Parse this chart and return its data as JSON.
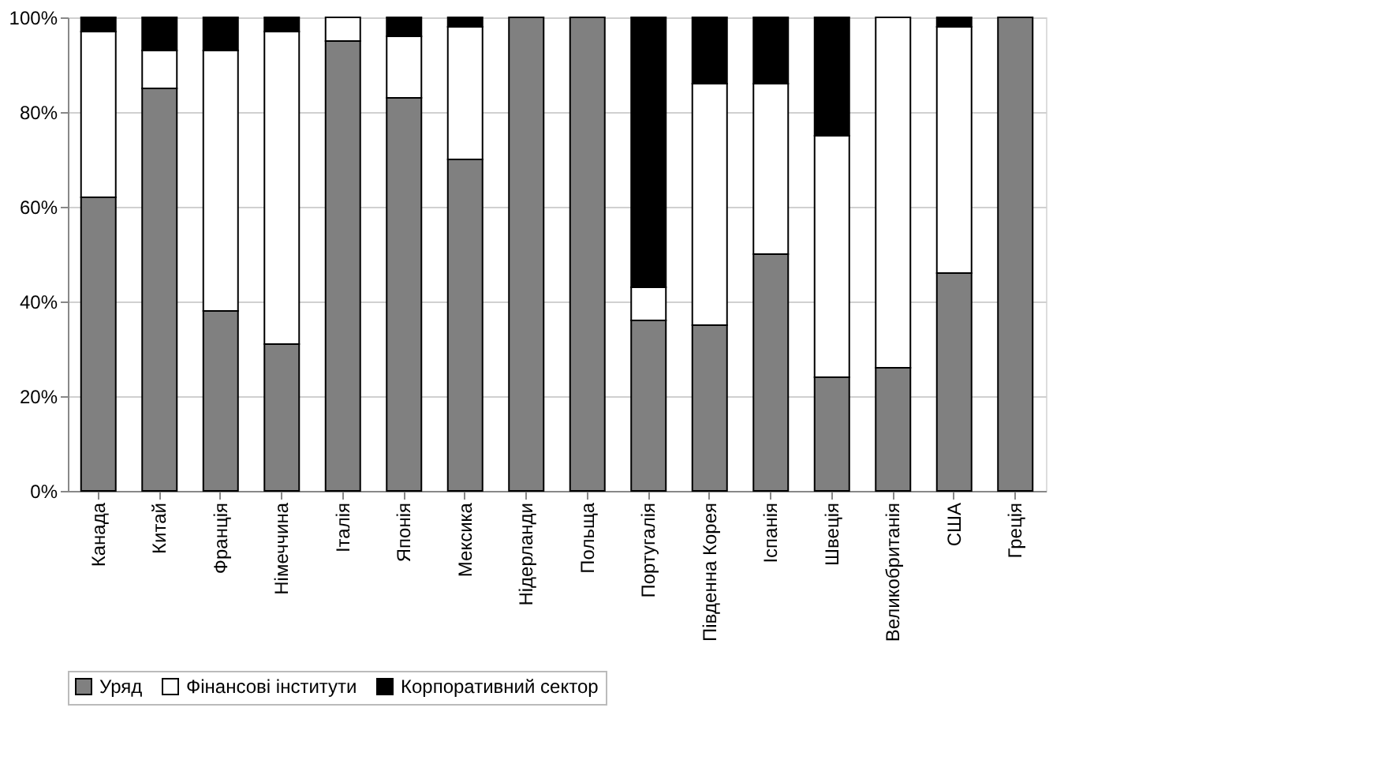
{
  "chart_data": {
    "type": "bar",
    "stacked": true,
    "categories": [
      "Канада",
      "Китай",
      "Франція",
      "Німеччина",
      "Італія",
      "Японія",
      "Мексика",
      "Нідерланди",
      "Польща",
      "Португалія",
      "Південна Корея",
      "Іспанія",
      "Швеція",
      "Великобританія",
      "США",
      "Греція"
    ],
    "series": [
      {
        "name": "Уряд",
        "color": "#808080",
        "values": [
          62,
          85,
          38,
          31,
          95,
          83,
          70,
          100,
          100,
          36,
          35,
          50,
          24,
          26,
          46,
          100
        ]
      },
      {
        "name": "Фінансові інститути",
        "color": "#ffffff",
        "values": [
          35,
          8,
          55,
          66,
          5,
          13,
          28,
          0,
          0,
          7,
          51,
          36,
          51,
          74,
          52,
          0
        ]
      },
      {
        "name": "Корпоративний сектор",
        "color": "#000000",
        "values": [
          3,
          7,
          7,
          3,
          0,
          4,
          2,
          0,
          0,
          57,
          14,
          14,
          25,
          0,
          2,
          0
        ]
      }
    ],
    "ylim": [
      0,
      100
    ],
    "yticks": [
      {
        "value": 0,
        "label": "0%"
      },
      {
        "value": 20,
        "label": "20%"
      },
      {
        "value": 40,
        "label": "40%"
      },
      {
        "value": 60,
        "label": "60%"
      },
      {
        "value": 80,
        "label": "80%"
      },
      {
        "value": 100,
        "label": "100%"
      }
    ],
    "grid": "y",
    "legend": "bottom"
  }
}
